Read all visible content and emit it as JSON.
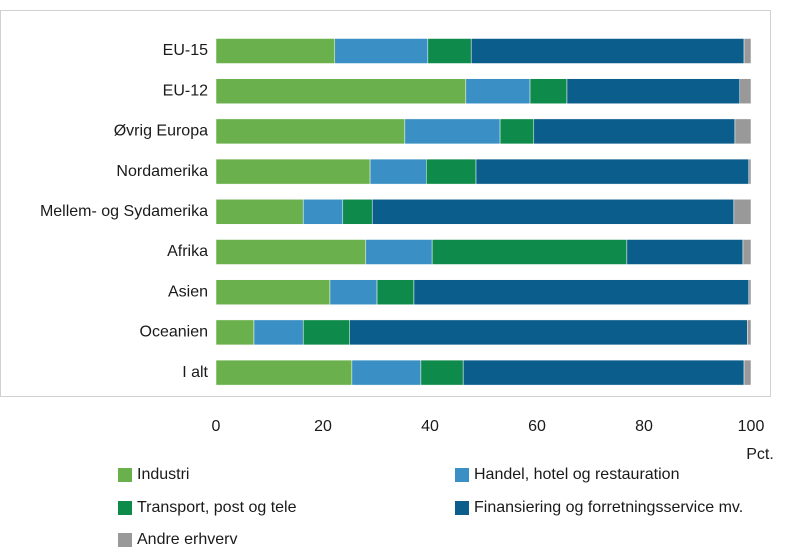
{
  "chart_data": {
    "type": "stacked_barh",
    "categories": [
      "EU-15",
      "EU-12",
      "Øvrig Europa",
      "Nordamerika",
      "Mellem- og Sydamerika",
      "Afrika",
      "Asien",
      "Oceanien",
      "I alt"
    ],
    "series": [
      {
        "name": "Industri",
        "color": "#6ab04c",
        "values": [
          22.2,
          46.7,
          35.3,
          28.8,
          16.3,
          28.0,
          21.3,
          7.1,
          25.4
        ]
      },
      {
        "name": "Handel, hotel og restauration",
        "color": "#3a8fc4",
        "values": [
          17.4,
          12.0,
          17.8,
          10.5,
          7.4,
          12.4,
          8.8,
          9.2,
          12.9
        ]
      },
      {
        "name": "Transport, post og tele",
        "color": "#0e8a4a",
        "values": [
          8.1,
          6.9,
          6.3,
          9.3,
          5.5,
          36.4,
          6.9,
          8.7,
          7.9
        ]
      },
      {
        "name": "Finansiering og forretningsservice mv.",
        "color": "#0b5d8c",
        "values": [
          51.0,
          32.3,
          37.6,
          51.0,
          67.6,
          21.7,
          62.6,
          74.3,
          52.5
        ]
      },
      {
        "name": "Andre erhverv",
        "color": "#999999",
        "values": [
          1.3,
          2.1,
          3.0,
          0.4,
          3.2,
          1.5,
          0.4,
          0.7,
          1.3
        ]
      }
    ],
    "xlabel": "Pct.",
    "xlim": [
      0,
      100
    ],
    "xticks": [
      0,
      20,
      40,
      60,
      80,
      100
    ],
    "grid": false
  }
}
